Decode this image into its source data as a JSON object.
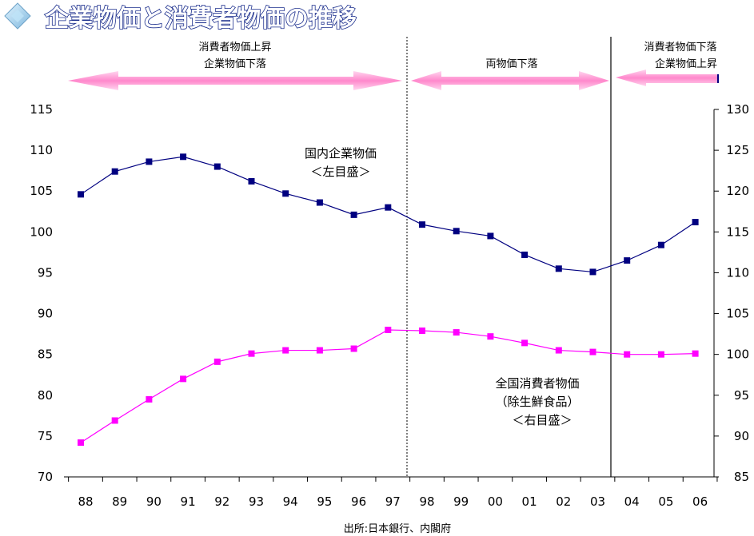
{
  "chart_data": {
    "type": "line",
    "title": "企業物価と消費者物価の推移",
    "source": "出所:日本銀行、内閣府",
    "categories": [
      "88",
      "89",
      "90",
      "91",
      "92",
      "93",
      "94",
      "95",
      "96",
      "97",
      "98",
      "99",
      "00",
      "01",
      "02",
      "03",
      "04",
      "05",
      "06"
    ],
    "y_left": {
      "ticks": [
        "70",
        "75",
        "80",
        "85",
        "90",
        "95",
        "100",
        "105",
        "110",
        "115"
      ],
      "ylim": [
        70,
        115
      ]
    },
    "y_right": {
      "ticks": [
        "85",
        "90",
        "95",
        "100",
        "105",
        "110",
        "115",
        "120",
        "125",
        "130"
      ],
      "ylim": [
        85,
        130
      ]
    },
    "series": [
      {
        "name": "国内企業物価",
        "note": "＜左目盛＞",
        "axis": "left",
        "color": "#000080",
        "values": [
          104.6,
          107.4,
          108.6,
          109.2,
          108.0,
          106.2,
          104.7,
          103.6,
          102.1,
          103.0,
          100.9,
          100.1,
          99.5,
          97.2,
          95.5,
          95.1,
          96.5,
          98.4,
          101.2
        ]
      },
      {
        "name": "全国消費者物価",
        "note": "（除生鮮食品）",
        "note2": "＜右目盛＞",
        "axis": "right",
        "color": "#ff00ff",
        "values": [
          89.2,
          91.9,
          94.5,
          97.0,
          99.1,
          100.1,
          100.5,
          100.5,
          100.7,
          103.0,
          102.9,
          102.7,
          102.2,
          101.4,
          100.5,
          100.3,
          100.0,
          100.0,
          100.1
        ]
      }
    ],
    "periods": [
      {
        "label1": "消費者物価上昇",
        "label2": "企業物価下落"
      },
      {
        "label1": "両物価下落"
      },
      {
        "label1": "消費者物価下落",
        "label2": "企業物価上昇"
      }
    ],
    "grid": false,
    "colors": {
      "arrow": "#ff88cc",
      "title_stroke": "#1a2d8c"
    }
  }
}
